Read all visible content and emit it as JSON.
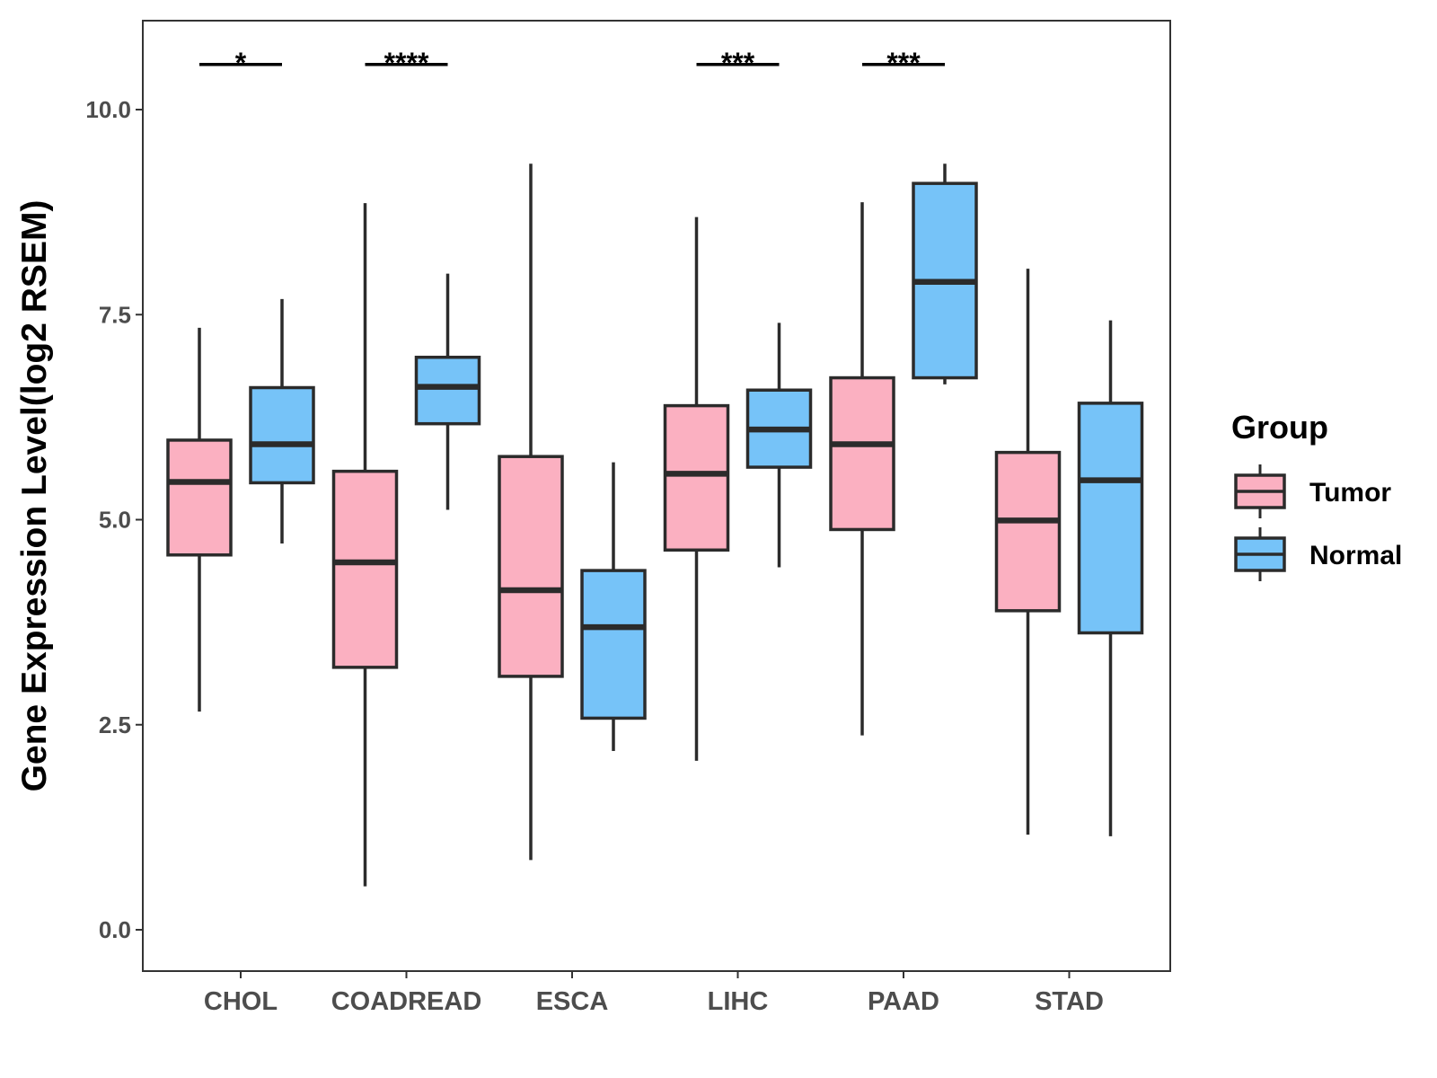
{
  "chart_data": {
    "type": "boxplot",
    "title": "",
    "xlabel": "",
    "ylabel": "Gene Expression Level(log2 RSEM)",
    "ylim": [
      -0.5,
      11.0
    ],
    "yticks": [
      0.0,
      2.5,
      5.0,
      7.5,
      10.0
    ],
    "ytick_labels": [
      "0.0",
      "2.5",
      "5.0",
      "7.5",
      "10.0"
    ],
    "categories": [
      "CHOL",
      "COADREAD",
      "ESCA",
      "LIHC",
      "PAAD",
      "STAD"
    ],
    "legend": {
      "title": "Group",
      "position": "right"
    },
    "series": [
      {
        "name": "Tumor",
        "color": "#FBB0C1",
        "boxes": [
          {
            "min": 2.66,
            "q1": 4.57,
            "median": 5.46,
            "q3": 5.97,
            "max": 7.34
          },
          {
            "min": 0.53,
            "q1": 3.2,
            "median": 4.48,
            "q3": 5.59,
            "max": 8.86
          },
          {
            "min": 0.85,
            "q1": 3.09,
            "median": 4.14,
            "q3": 5.77,
            "max": 9.34
          },
          {
            "min": 2.06,
            "q1": 4.63,
            "median": 5.56,
            "q3": 6.39,
            "max": 8.69
          },
          {
            "min": 2.37,
            "q1": 4.88,
            "median": 5.92,
            "q3": 6.73,
            "max": 8.87
          },
          {
            "min": 1.16,
            "q1": 3.89,
            "median": 4.99,
            "q3": 5.82,
            "max": 8.06
          }
        ]
      },
      {
        "name": "Normal",
        "color": "#76C3F8",
        "boxes": [
          {
            "min": 4.71,
            "q1": 5.45,
            "median": 5.92,
            "q3": 6.61,
            "max": 7.69
          },
          {
            "min": 5.12,
            "q1": 6.17,
            "median": 6.62,
            "q3": 6.98,
            "max": 8.0
          },
          {
            "min": 2.18,
            "q1": 2.58,
            "median": 3.69,
            "q3": 4.38,
            "max": 5.7
          },
          {
            "min": 4.42,
            "q1": 5.64,
            "median": 6.1,
            "q3": 6.58,
            "max": 7.4
          },
          {
            "min": 6.65,
            "q1": 6.73,
            "median": 7.9,
            "q3": 9.1,
            "max": 9.34
          },
          {
            "min": 1.14,
            "q1": 3.62,
            "median": 5.48,
            "q3": 6.42,
            "max": 7.43
          }
        ]
      }
    ],
    "annotations": [
      {
        "category": "CHOL",
        "label": "*",
        "y": 10.55
      },
      {
        "category": "COADREAD",
        "label": "****",
        "y": 10.55
      },
      {
        "category": "LIHC",
        "label": "***",
        "y": 10.55
      },
      {
        "category": "PAAD",
        "label": "***",
        "y": 10.55
      }
    ]
  }
}
